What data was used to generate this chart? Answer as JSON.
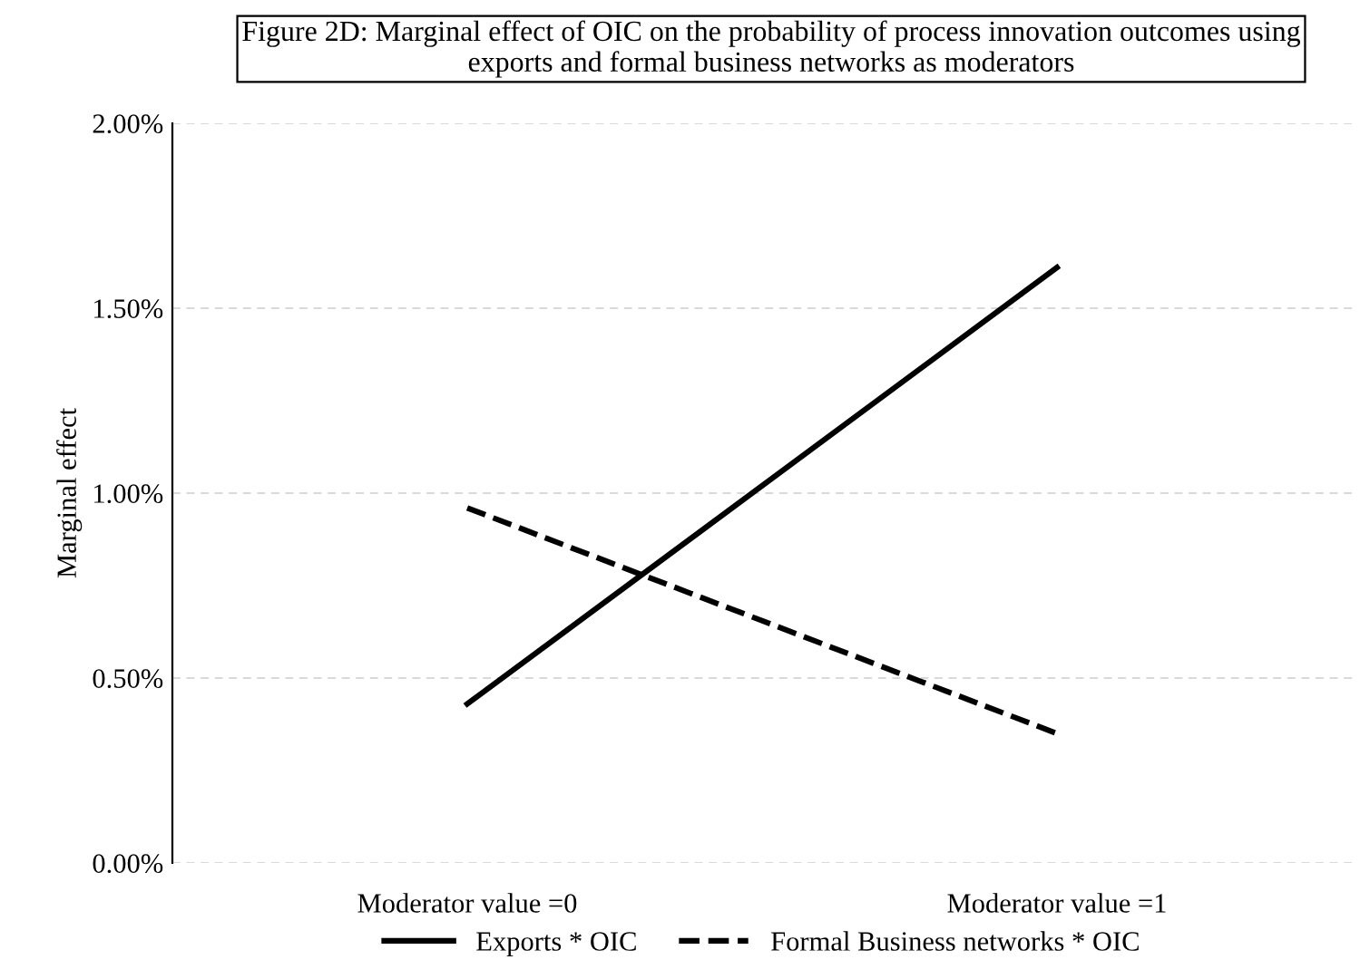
{
  "chart_data": {
    "type": "line",
    "title": "Figure 2D: Marginal effect of OIC on the probability of process innovation outcomes using\nexports and formal business networks as moderators",
    "ylabel": "Marginal effect",
    "categories": [
      "Moderator value =0",
      "Moderator value =1"
    ],
    "series": [
      {
        "name": "Exports * OIC",
        "color": "#000000",
        "values": [
          0.43,
          1.61
        ],
        "line_style": "solid"
      },
      {
        "name": "Formal Business networks * OIC",
        "color": "#000000",
        "values": [
          0.96,
          0.35
        ],
        "line_style": "dashed"
      }
    ],
    "ylim": [
      0,
      2
    ],
    "yticks": [
      {
        "value": 0,
        "label": "0.00%"
      },
      {
        "value": 0.5,
        "label": "0.50%"
      },
      {
        "value": 1,
        "label": "1.00%"
      },
      {
        "value": 1.5,
        "label": "1.50%"
      },
      {
        "value": 2,
        "label": "2.00%"
      }
    ],
    "grid": "y",
    "legend": "bottom",
    "marker": "none"
  }
}
